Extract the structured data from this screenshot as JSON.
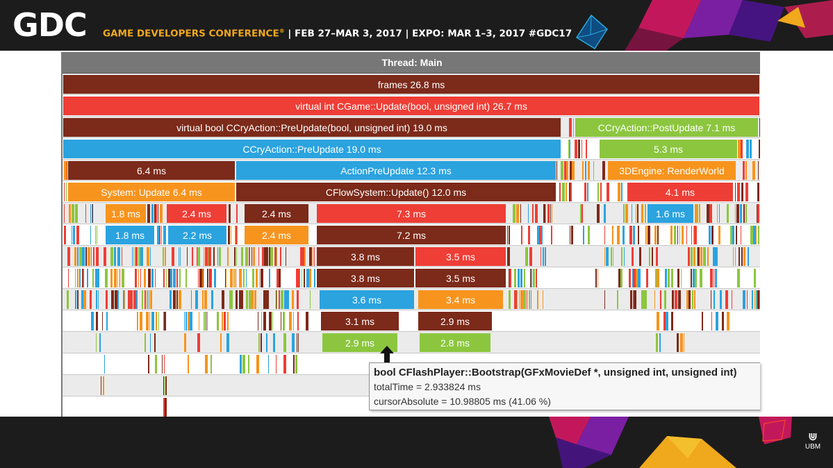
{
  "slide": {
    "logo": "GDC",
    "conference_name": "GAME DEVELOPERS CONFERENCE",
    "registered_mark": "®",
    "event_info": " | FEB 27–MAR 3, 2017 | EXPO: MAR 1–3, 2017 #GDC17",
    "sponsor_glyph": "⋓",
    "sponsor": "UBM"
  },
  "colors": {
    "dark_red": "#7c2a1a",
    "red": "#ee3e36",
    "blue": "#2ba3df",
    "orange": "#f7941d",
    "green": "#8cc63f"
  },
  "profiler": {
    "title": "Thread: Main",
    "blocks": {
      "frames": "frames 26.8 ms",
      "cgame_update": "virtual int CGame::Update(bool, unsigned int) 26.7 ms",
      "cryaction_preupdate_virtual": "virtual bool CCryAction::PreUpdate(bool, unsigned int) 19.0 ms",
      "cryaction_postupdate": "CCryAction::PostUpdate 7.1 ms",
      "cryaction_preupdate": "CCryAction::PreUpdate 19.0 ms",
      "block_5_3": "5.3 ms",
      "block_6_4": "6.4 ms",
      "action_preupdate": "ActionPreUpdate 12.3 ms",
      "renderworld": "3DEngine: RenderWorld",
      "system_update": "System: Update 6.4 ms",
      "flowsystem_update": "CFlowSystem::Update() 12.0 ms",
      "block_4_1": "4.1 ms",
      "r7_1_8": "1.8 ms",
      "r7_2_4a": "2.4 ms",
      "r7_2_4b": "2.4 ms",
      "r7_7_3": "7.3 ms",
      "r7_1_6": "1.6 ms",
      "r8_1_8": "1.8 ms",
      "r8_2_2": "2.2 ms",
      "r8_2_4": "2.4 ms",
      "r8_7_2": "7.2 ms",
      "r9_3_8": "3.8 ms",
      "r9_3_5": "3.5 ms",
      "r10_3_8": "3.8 ms",
      "r10_3_5": "3.5 ms",
      "r11_3_6": "3.6 ms",
      "r11_3_4": "3.4 ms",
      "r12_3_1": "3.1 ms",
      "r12_2_9": "2.9 ms",
      "r13_2_9": "2.9 ms",
      "r13_2_8": "2.8 ms"
    },
    "tooltip": {
      "function": "bool CFlashPlayer::Bootstrap(GFxMovieDef *, unsigned int, unsigned int)",
      "total_time": "totalTime = 2.933824 ms",
      "cursor_absolute": "cursorAbsolute = 10.98805 ms (41.06 %)"
    }
  }
}
